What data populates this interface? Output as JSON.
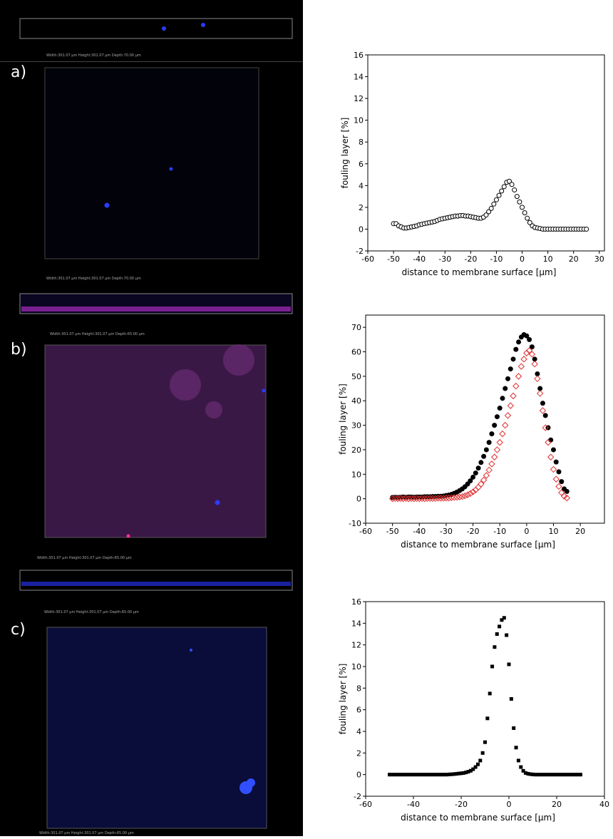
{
  "panels": [
    {
      "label": "a)",
      "strip_caption": "Width:301.07 µm Height:301.07 µm Depth:70.00 µm",
      "image_caption": "Width:301.07 µm Height:301.07 µm Depth:70.00 µm"
    },
    {
      "label": "b)",
      "strip_caption": "Width:301.07 µm Height:301.07 µm Depth:65.00 µm",
      "image_caption": "Width:301.07 µm Height:301.07 µm Depth:65.00 µm"
    },
    {
      "label": "c)",
      "strip_caption": "Width:301.07 µm Height:301.07 µm Depth:65.00 µm",
      "image_caption": "Width:301.07 µm Height:301.07 µm Depth:65.00 µm"
    }
  ],
  "chart_data": [
    {
      "type": "scatter",
      "xlabel": "distance to membrane surface [µm]",
      "ylabel": "fouling layer [%]",
      "xlim": [
        -60,
        32
      ],
      "ylim": [
        -2,
        16
      ],
      "xticks": [
        -60,
        -50,
        -40,
        -30,
        -20,
        -10,
        0,
        10,
        20,
        30
      ],
      "yticks": [
        -2,
        0,
        2,
        4,
        6,
        8,
        10,
        12,
        14,
        16
      ],
      "series": [
        {
          "marker": "circle-open",
          "color": "#000000",
          "x": [
            -50,
            -49,
            -48,
            -47,
            -46,
            -45,
            -44,
            -43,
            -42,
            -41,
            -40,
            -39,
            -38,
            -37,
            -36,
            -35,
            -34,
            -33,
            -32,
            -31,
            -30,
            -29,
            -28,
            -27,
            -26,
            -25,
            -24,
            -23,
            -22,
            -21,
            -20,
            -19,
            -18,
            -17,
            -16,
            -15,
            -14,
            -13,
            -12,
            -11,
            -10,
            -9,
            -8,
            -7,
            -6,
            -5,
            -4,
            -3,
            -2,
            -1,
            0,
            1,
            2,
            3,
            4,
            5,
            6,
            7,
            8,
            9,
            10,
            11,
            12,
            13,
            14,
            15,
            16,
            17,
            18,
            19,
            20,
            21,
            22,
            23,
            24,
            25
          ],
          "values": [
            0.5,
            0.5,
            0.3,
            0.2,
            0.1,
            0.1,
            0.15,
            0.2,
            0.25,
            0.3,
            0.4,
            0.45,
            0.5,
            0.55,
            0.6,
            0.65,
            0.7,
            0.8,
            0.9,
            0.95,
            1.0,
            1.05,
            1.1,
            1.15,
            1.2,
            1.2,
            1.25,
            1.25,
            1.2,
            1.2,
            1.15,
            1.1,
            1.05,
            1.0,
            1.0,
            1.1,
            1.3,
            1.6,
            1.9,
            2.3,
            2.7,
            3.1,
            3.5,
            3.9,
            4.3,
            4.4,
            4.1,
            3.6,
            3.0,
            2.5,
            2.0,
            1.5,
            1.0,
            0.6,
            0.3,
            0.15,
            0.1,
            0.05,
            0,
            0,
            0,
            0,
            0,
            0,
            0,
            0,
            0,
            0,
            0,
            0,
            0,
            0,
            0,
            0,
            0,
            0
          ]
        }
      ]
    },
    {
      "type": "scatter",
      "xlabel": "distance to membrane surface [µm]",
      "ylabel": "fouling layer [%]",
      "xlim": [
        -60,
        29
      ],
      "ylim": [
        -10,
        75
      ],
      "xticks": [
        -60,
        -50,
        -40,
        -30,
        -20,
        -10,
        0,
        10,
        20
      ],
      "yticks": [
        -10,
        0,
        10,
        20,
        30,
        40,
        50,
        60,
        70
      ],
      "series": [
        {
          "marker": "circle",
          "color": "#000000",
          "x": [
            -50,
            -49,
            -48,
            -47,
            -46,
            -45,
            -44,
            -43,
            -42,
            -41,
            -40,
            -39,
            -38,
            -37,
            -36,
            -35,
            -34,
            -33,
            -32,
            -31,
            -30,
            -29,
            -28,
            -27,
            -26,
            -25,
            -24,
            -23,
            -22,
            -21,
            -20,
            -19,
            -18,
            -17,
            -16,
            -15,
            -14,
            -13,
            -12,
            -11,
            -10,
            -9,
            -8,
            -7,
            -6,
            -5,
            -4,
            -3,
            -2,
            -1,
            0,
            1,
            2,
            3,
            4,
            5,
            6,
            7,
            8,
            9,
            10,
            11,
            12,
            13,
            14,
            15
          ],
          "values": [
            0.5,
            0.6,
            0.5,
            0.6,
            0.7,
            0.6,
            0.7,
            0.7,
            0.6,
            0.7,
            0.7,
            0.7,
            0.8,
            0.8,
            0.8,
            0.9,
            0.9,
            1.0,
            1.0,
            1.1,
            1.3,
            1.5,
            1.8,
            2.2,
            2.7,
            3.3,
            4.0,
            4.9,
            6.0,
            7.3,
            8.8,
            10.5,
            12.5,
            14.8,
            17.3,
            20,
            23,
            26.5,
            30,
            33.5,
            37,
            41,
            45,
            49,
            53,
            57,
            61,
            64,
            66,
            67,
            66.5,
            65,
            62,
            57,
            51,
            45,
            39,
            34,
            29,
            24,
            20,
            15,
            11,
            7,
            4,
            3
          ]
        },
        {
          "marker": "diamond-open",
          "color": "#e03030",
          "x": [
            -50,
            -49,
            -48,
            -47,
            -46,
            -45,
            -44,
            -43,
            -42,
            -41,
            -40,
            -39,
            -38,
            -37,
            -36,
            -35,
            -34,
            -33,
            -32,
            -31,
            -30,
            -29,
            -28,
            -27,
            -26,
            -25,
            -24,
            -23,
            -22,
            -21,
            -20,
            -19,
            -18,
            -17,
            -16,
            -15,
            -14,
            -13,
            -12,
            -11,
            -10,
            -9,
            -8,
            -7,
            -6,
            -5,
            -4,
            -3,
            -2,
            -1,
            0,
            1,
            2,
            3,
            4,
            5,
            6,
            7,
            8,
            9,
            10,
            11,
            12,
            13,
            14,
            15
          ],
          "values": [
            0,
            0.1,
            0,
            0.1,
            0,
            0.1,
            0,
            0.1,
            0,
            0.1,
            0,
            0.1,
            0,
            0.1,
            0.1,
            0.1,
            0.1,
            0.2,
            0.2,
            0.2,
            0.3,
            0.3,
            0.4,
            0.5,
            0.6,
            0.7,
            0.9,
            1.2,
            1.6,
            2.1,
            2.8,
            3.6,
            4.7,
            6,
            7.6,
            9.5,
            11.7,
            14.2,
            17,
            20,
            23,
            26.5,
            30,
            34,
            38,
            42,
            46,
            50,
            54,
            57,
            59.5,
            60.5,
            59,
            55,
            49,
            43,
            36,
            29,
            23,
            17,
            12,
            8,
            5,
            2.5,
            1,
            0.3
          ]
        }
      ]
    },
    {
      "type": "scatter",
      "xlabel": "distance to membrane surface [µm]",
      "ylabel": "fouling layer [%]",
      "xlim": [
        -60,
        40
      ],
      "ylim": [
        -2,
        16
      ],
      "xticks": [
        -60,
        -40,
        -20,
        0,
        20,
        40
      ],
      "yticks": [
        -2,
        0,
        2,
        4,
        6,
        8,
        10,
        12,
        14,
        16
      ],
      "series": [
        {
          "marker": "square",
          "color": "#000000",
          "x": [
            -50,
            -49,
            -48,
            -47,
            -46,
            -45,
            -44,
            -43,
            -42,
            -41,
            -40,
            -39,
            -38,
            -37,
            -36,
            -35,
            -34,
            -33,
            -32,
            -31,
            -30,
            -29,
            -28,
            -27,
            -26,
            -25,
            -24,
            -23,
            -22,
            -21,
            -20,
            -19,
            -18,
            -17,
            -16,
            -15,
            -14,
            -13,
            -12,
            -11,
            -10,
            -9,
            -8,
            -7,
            -6,
            -5,
            -4,
            -3,
            -2,
            -1,
            0,
            1,
            2,
            3,
            4,
            5,
            6,
            7,
            8,
            9,
            10,
            11,
            12,
            13,
            14,
            15,
            16,
            17,
            18,
            19,
            20,
            21,
            22,
            23,
            24,
            25,
            26,
            27,
            28,
            29,
            30
          ],
          "values": [
            0,
            0,
            0,
            0,
            0,
            0,
            0,
            0,
            0,
            0,
            0,
            0,
            0,
            0,
            0,
            0,
            0,
            0,
            0,
            0,
            0,
            0,
            0,
            0,
            0,
            0.02,
            0.03,
            0.05,
            0.07,
            0.1,
            0.12,
            0.15,
            0.2,
            0.27,
            0.36,
            0.5,
            0.7,
            0.95,
            1.3,
            2.0,
            3.0,
            5.2,
            7.5,
            10,
            11.8,
            13,
            13.7,
            14.3,
            14.5,
            12.9,
            10.2,
            7,
            4.3,
            2.5,
            1.3,
            0.7,
            0.35,
            0.15,
            0.08,
            0.04,
            0.02,
            0,
            0,
            0,
            0,
            0,
            0,
            0,
            0,
            0,
            0,
            0,
            0,
            0,
            0,
            0,
            0,
            0,
            0,
            0,
            0
          ]
        }
      ]
    }
  ]
}
